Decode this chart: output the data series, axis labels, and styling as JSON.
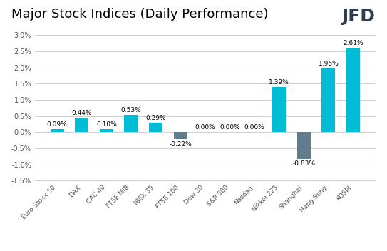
{
  "title": "Major Stock Indices (Daily Performance)",
  "categories": [
    "Euro Stoxx 50",
    "DAX",
    "CAC 40",
    "FTSE MIB",
    "IBEX 35",
    "FTSE 100",
    "Dow 30",
    "S&P 500",
    "Nasdaq",
    "Nikkei 225",
    "Shanghai",
    "Hang Seng",
    "KOSPI"
  ],
  "values": [
    0.09,
    0.44,
    0.1,
    0.53,
    0.29,
    -0.22,
    0.0,
    0.0,
    0.0,
    1.39,
    -0.83,
    1.96,
    2.61
  ],
  "labels": [
    "0.09%",
    "0.44%",
    "0.10%",
    "0.53%",
    "0.29%",
    "-0.22%",
    "0.00%",
    "0.00%",
    "0.00%",
    "1.39%",
    "-0.83%",
    "1.96%",
    "2.61%"
  ],
  "bar_color_positive": "#00bcd4",
  "bar_color_negative": "#607d8b",
  "ylim": [
    -1.5,
    3.0
  ],
  "yticks": [
    -1.5,
    -1.0,
    -0.5,
    0.0,
    0.5,
    1.0,
    1.5,
    2.0,
    2.5,
    3.0
  ],
  "background_color": "#ffffff",
  "grid_color": "#d0d0d0",
  "title_fontsize": 13,
  "label_fontsize": 6.5,
  "tick_fontsize": 7,
  "xtick_fontsize": 6.5,
  "bar_width": 0.55,
  "jfd_fontsize": 18,
  "jfd_color": "#2d3e50"
}
